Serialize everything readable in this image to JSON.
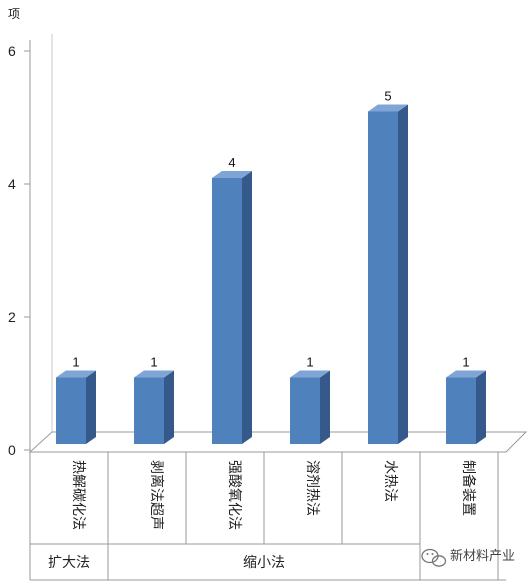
{
  "chart_data": {
    "type": "bar",
    "unit": "项",
    "ylim": [
      0,
      6
    ],
    "yticks": [
      "0",
      "2",
      "4",
      "6"
    ],
    "categories": [
      "热解碳化法",
      "剥离法超声",
      "强酸氧化法",
      "溶剂热法",
      "水热法",
      "制备装置"
    ],
    "values": [
      1,
      1,
      4,
      1,
      5,
      1
    ],
    "data_labels": [
      "1",
      "1",
      "4",
      "1",
      "5",
      "1"
    ],
    "groups": [
      {
        "label": "扩大法",
        "span": [
          0,
          0
        ]
      },
      {
        "label": "缩小法",
        "span": [
          1,
          4
        ]
      },
      {
        "label": "",
        "span": [
          5,
          5
        ]
      }
    ],
    "bar_color": "#4f81bd",
    "bar_side_color": "#35598a",
    "bar_top_color": "#7ea5d6",
    "grid": false,
    "legend": "none"
  },
  "watermark": {
    "text": "新材料产业"
  }
}
